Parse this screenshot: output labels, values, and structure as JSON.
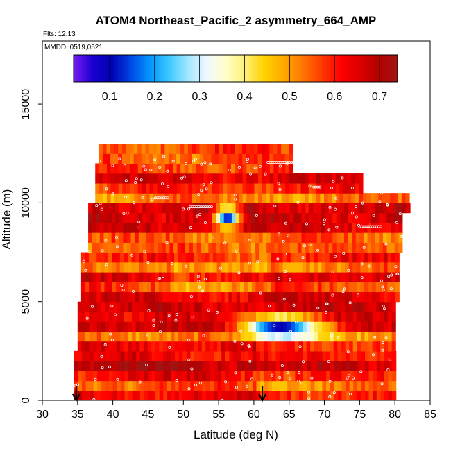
{
  "chart_data": {
    "type": "heatmap",
    "title": "ATOM4 Northeast_Pacific_2 asymmetry_664_AMP",
    "flights_label": "Flts: 12,13",
    "dates_label": "MMDD: 0519,0521",
    "xlabel": "Latitude (deg N)",
    "ylabel": "Altitude (m)",
    "xlim": [
      30,
      85
    ],
    "ylim": [
      0,
      18200
    ],
    "x_ticks": [
      "30",
      "35",
      "40",
      "45",
      "50",
      "55",
      "60",
      "65",
      "70",
      "75",
      "80",
      "85"
    ],
    "y_ticks": [
      "0",
      "5000",
      "10000",
      "15000"
    ],
    "colorbar": {
      "range": [
        0.02,
        0.74
      ],
      "ticks": [
        "0.1",
        "0.2",
        "0.3",
        "0.4",
        "0.5",
        "0.6",
        "0.7"
      ],
      "colors": [
        "#7a1cf0",
        "#1a00d0",
        "#0000b4",
        "#0046e6",
        "#0096ff",
        "#3cc8ff",
        "#a0e6ff",
        "#f0f8ff",
        "#ffffc8",
        "#fff078",
        "#ffd200",
        "#ffaa00",
        "#ff7800",
        "#ff3c00",
        "#ff0000",
        "#dc0000",
        "#b40000",
        "#a01414"
      ]
    },
    "profile_arrows_lat": [
      34.8,
      61.2
    ],
    "feature_low_asymmetry": [
      {
        "lat_range": [
          54,
          58
        ],
        "alt_center": 9300,
        "min_value": 0.12
      },
      {
        "lat_range": [
          57,
          70
        ],
        "alt_center": 3700,
        "min_value": 0.1
      }
    ],
    "background_value_range": [
      0.5,
      0.7
    ]
  }
}
